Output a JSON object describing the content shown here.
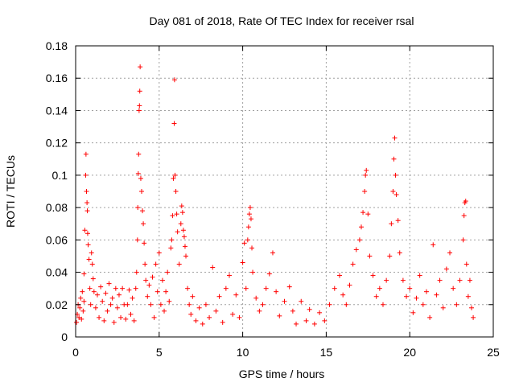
{
  "chart_data": {
    "type": "scatter",
    "title": "Day 081 of 2018, Rate Of TEC Index for receiver rsal",
    "xlabel": "GPS time / hours",
    "ylabel": "ROTI / TECUs",
    "xlim": [
      0,
      25
    ],
    "ylim": [
      0,
      0.18
    ],
    "xticks": [
      0,
      5,
      10,
      15,
      20,
      25
    ],
    "xtick_labels": [
      "0",
      "5",
      "10",
      "15",
      "20",
      "25"
    ],
    "yticks": [
      0,
      0.02,
      0.04,
      0.06,
      0.08,
      0.1,
      0.12,
      0.14,
      0.16,
      0.18
    ],
    "ytick_labels": [
      "0",
      "0.02",
      "0.04",
      "0.06",
      "0.08",
      "0.1",
      "0.12",
      "0.14",
      "0.16",
      "0.18"
    ],
    "grid": true,
    "marker": "+",
    "series_color": "#ff0000",
    "series": [
      {
        "name": "ROTI",
        "points": [
          [
            0.05,
            0.009
          ],
          [
            0.1,
            0.014
          ],
          [
            0.15,
            0.02
          ],
          [
            0.2,
            0.012
          ],
          [
            0.25,
            0.018
          ],
          [
            0.3,
            0.024
          ],
          [
            0.35,
            0.011
          ],
          [
            0.4,
            0.028
          ],
          [
            0.45,
            0.016
          ],
          [
            0.5,
            0.022
          ],
          [
            0.5,
            0.039
          ],
          [
            0.55,
            0.066
          ],
          [
            0.6,
            0.1
          ],
          [
            0.62,
            0.113
          ],
          [
            0.65,
            0.09
          ],
          [
            0.68,
            0.083
          ],
          [
            0.7,
            0.078
          ],
          [
            0.72,
            0.064
          ],
          [
            0.75,
            0.057
          ],
          [
            0.8,
            0.048
          ],
          [
            0.85,
            0.03
          ],
          [
            0.9,
            0.02
          ],
          [
            0.95,
            0.052
          ],
          [
            1.0,
            0.045
          ],
          [
            1.05,
            0.036
          ],
          [
            1.1,
            0.028
          ],
          [
            1.2,
            0.018
          ],
          [
            1.3,
            0.026
          ],
          [
            1.4,
            0.012
          ],
          [
            1.5,
            0.031
          ],
          [
            1.6,
            0.022
          ],
          [
            1.7,
            0.01
          ],
          [
            1.8,
            0.027
          ],
          [
            1.9,
            0.016
          ],
          [
            2.0,
            0.033
          ],
          [
            2.1,
            0.02
          ],
          [
            2.2,
            0.024
          ],
          [
            2.3,
            0.009
          ],
          [
            2.4,
            0.03
          ],
          [
            2.5,
            0.018
          ],
          [
            2.6,
            0.026
          ],
          [
            2.7,
            0.012
          ],
          [
            2.8,
            0.03
          ],
          [
            2.9,
            0.02
          ],
          [
            3.0,
            0.011
          ],
          [
            3.1,
            0.02
          ],
          [
            3.2,
            0.029
          ],
          [
            3.3,
            0.014
          ],
          [
            3.4,
            0.024
          ],
          [
            3.5,
            0.01
          ],
          [
            3.6,
            0.03
          ],
          [
            3.65,
            0.04
          ],
          [
            3.7,
            0.06
          ],
          [
            3.72,
            0.08
          ],
          [
            3.75,
            0.101
          ],
          [
            3.77,
            0.113
          ],
          [
            3.8,
            0.14
          ],
          [
            3.82,
            0.143
          ],
          [
            3.84,
            0.152
          ],
          [
            3.86,
            0.167
          ],
          [
            3.9,
            0.098
          ],
          [
            3.95,
            0.09
          ],
          [
            4.0,
            0.078
          ],
          [
            4.05,
            0.07
          ],
          [
            4.1,
            0.058
          ],
          [
            4.15,
            0.045
          ],
          [
            4.2,
            0.035
          ],
          [
            4.3,
            0.025
          ],
          [
            4.4,
            0.032
          ],
          [
            4.5,
            0.02
          ],
          [
            4.6,
            0.037
          ],
          [
            4.7,
            0.012
          ],
          [
            4.8,
            0.045
          ],
          [
            4.9,
            0.028
          ],
          [
            5.0,
            0.052
          ],
          [
            5.1,
            0.02
          ],
          [
            5.2,
            0.035
          ],
          [
            5.3,
            0.016
          ],
          [
            5.4,
            0.028
          ],
          [
            5.5,
            0.04
          ],
          [
            5.6,
            0.022
          ],
          [
            5.7,
            0.055
          ],
          [
            5.75,
            0.06
          ],
          [
            5.8,
            0.075
          ],
          [
            5.85,
            0.098
          ],
          [
            5.9,
            0.132
          ],
          [
            5.92,
            0.159
          ],
          [
            5.95,
            0.1
          ],
          [
            6.0,
            0.09
          ],
          [
            6.05,
            0.076
          ],
          [
            6.1,
            0.065
          ],
          [
            6.2,
            0.045
          ],
          [
            6.3,
            0.07
          ],
          [
            6.35,
            0.081
          ],
          [
            6.4,
            0.077
          ],
          [
            6.45,
            0.066
          ],
          [
            6.5,
            0.062
          ],
          [
            6.55,
            0.056
          ],
          [
            6.6,
            0.05
          ],
          [
            6.7,
            0.03
          ],
          [
            6.8,
            0.02
          ],
          [
            6.9,
            0.014
          ],
          [
            7.0,
            0.025
          ],
          [
            7.2,
            0.01
          ],
          [
            7.4,
            0.018
          ],
          [
            7.6,
            0.008
          ],
          [
            7.8,
            0.02
          ],
          [
            8.0,
            0.012
          ],
          [
            8.2,
            0.043
          ],
          [
            8.4,
            0.016
          ],
          [
            8.6,
            0.025
          ],
          [
            8.8,
            0.009
          ],
          [
            9.0,
            0.03
          ],
          [
            9.2,
            0.038
          ],
          [
            9.4,
            0.014
          ],
          [
            9.6,
            0.026
          ],
          [
            9.8,
            0.012
          ],
          [
            10.0,
            0.046
          ],
          [
            10.1,
            0.058
          ],
          [
            10.2,
            0.03
          ],
          [
            10.3,
            0.06
          ],
          [
            10.35,
            0.068
          ],
          [
            10.4,
            0.076
          ],
          [
            10.45,
            0.08
          ],
          [
            10.5,
            0.073
          ],
          [
            10.55,
            0.055
          ],
          [
            10.6,
            0.04
          ],
          [
            10.8,
            0.024
          ],
          [
            11.0,
            0.016
          ],
          [
            11.2,
            0.02
          ],
          [
            11.4,
            0.03
          ],
          [
            11.6,
            0.039
          ],
          [
            11.8,
            0.052
          ],
          [
            12.0,
            0.028
          ],
          [
            12.2,
            0.013
          ],
          [
            12.5,
            0.022
          ],
          [
            12.8,
            0.031
          ],
          [
            13.0,
            0.016
          ],
          [
            13.2,
            0.008
          ],
          [
            13.5,
            0.022
          ],
          [
            13.8,
            0.01
          ],
          [
            14.0,
            0.017
          ],
          [
            14.3,
            0.008
          ],
          [
            14.6,
            0.015
          ],
          [
            14.9,
            0.01
          ],
          [
            15.2,
            0.02
          ],
          [
            15.5,
            0.03
          ],
          [
            15.8,
            0.038
          ],
          [
            16.0,
            0.026
          ],
          [
            16.2,
            0.02
          ],
          [
            16.4,
            0.032
          ],
          [
            16.6,
            0.045
          ],
          [
            16.8,
            0.054
          ],
          [
            17.0,
            0.06
          ],
          [
            17.1,
            0.068
          ],
          [
            17.2,
            0.077
          ],
          [
            17.3,
            0.09
          ],
          [
            17.35,
            0.1
          ],
          [
            17.4,
            0.103
          ],
          [
            17.5,
            0.076
          ],
          [
            17.6,
            0.05
          ],
          [
            17.8,
            0.038
          ],
          [
            18.0,
            0.025
          ],
          [
            18.2,
            0.03
          ],
          [
            18.4,
            0.02
          ],
          [
            18.6,
            0.035
          ],
          [
            18.8,
            0.05
          ],
          [
            18.9,
            0.07
          ],
          [
            19.0,
            0.09
          ],
          [
            19.05,
            0.11
          ],
          [
            19.1,
            0.123
          ],
          [
            19.15,
            0.1
          ],
          [
            19.2,
            0.088
          ],
          [
            19.3,
            0.072
          ],
          [
            19.4,
            0.052
          ],
          [
            19.6,
            0.035
          ],
          [
            19.8,
            0.025
          ],
          [
            20.0,
            0.03
          ],
          [
            20.2,
            0.015
          ],
          [
            20.4,
            0.024
          ],
          [
            20.6,
            0.038
          ],
          [
            20.8,
            0.02
          ],
          [
            21.0,
            0.028
          ],
          [
            21.2,
            0.012
          ],
          [
            21.4,
            0.057
          ],
          [
            21.6,
            0.026
          ],
          [
            21.8,
            0.035
          ],
          [
            22.0,
            0.018
          ],
          [
            22.2,
            0.042
          ],
          [
            22.4,
            0.052
          ],
          [
            22.6,
            0.03
          ],
          [
            22.8,
            0.02
          ],
          [
            23.0,
            0.035
          ],
          [
            23.2,
            0.06
          ],
          [
            23.25,
            0.075
          ],
          [
            23.3,
            0.083
          ],
          [
            23.35,
            0.084
          ],
          [
            23.4,
            0.045
          ],
          [
            23.5,
            0.025
          ],
          [
            23.6,
            0.035
          ],
          [
            23.7,
            0.018
          ],
          [
            23.8,
            0.012
          ]
        ]
      }
    ]
  }
}
